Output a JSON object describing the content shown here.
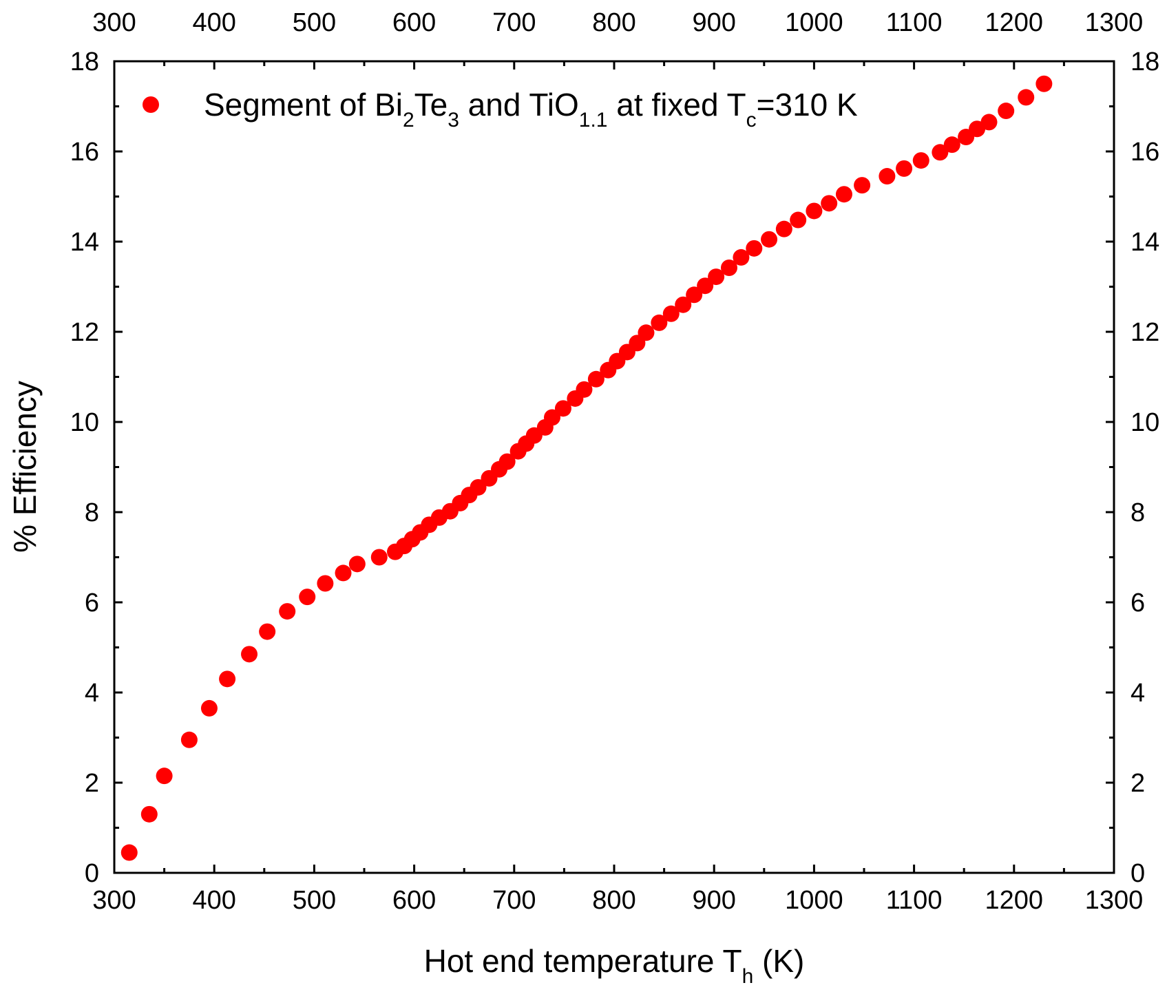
{
  "chart_data": {
    "type": "scatter",
    "xlabel": {
      "main": "Hot end temperature T",
      "sub": "h",
      "unit": " (K)"
    },
    "ylabel": "% Efficiency",
    "xlim": [
      300,
      1300
    ],
    "ylim": [
      0,
      18
    ],
    "xticks": [
      300,
      400,
      500,
      600,
      700,
      800,
      900,
      1000,
      1100,
      1200,
      1300
    ],
    "yticks": [
      0,
      2,
      4,
      6,
      8,
      10,
      12,
      14,
      16,
      18
    ],
    "mirror_axes": true,
    "grid": false,
    "legend_position": "top-left",
    "colors": {
      "marker": "#ff0000",
      "axis": "#000000",
      "background": "#ffffff"
    },
    "legend": {
      "parts": [
        {
          "text": "Segment of Bi"
        },
        {
          "text": "2",
          "sub": true
        },
        {
          "text": "Te"
        },
        {
          "text": "3",
          "sub": true
        },
        {
          "text": " and TiO"
        },
        {
          "text": "1.1",
          "sub": true
        },
        {
          "text": " at fixed T"
        },
        {
          "text": "c",
          "sub": true
        },
        {
          "text": "=310 K"
        }
      ]
    },
    "series": [
      {
        "name": "Segment of Bi2Te3 and TiO1.1 at fixed Tc=310 K",
        "x": [
          315,
          335,
          350,
          375,
          395,
          413,
          435,
          453,
          473,
          493,
          511,
          529,
          543,
          565,
          581,
          590,
          598,
          606,
          615,
          625,
          636,
          646,
          655,
          664,
          675,
          685,
          693,
          704,
          712,
          720,
          731,
          738,
          749,
          761,
          770,
          782,
          794,
          803,
          813,
          823,
          832,
          845,
          857,
          869,
          880,
          891,
          902,
          915,
          927,
          940,
          955,
          970,
          984,
          1000,
          1015,
          1030,
          1048,
          1073,
          1090,
          1107,
          1126,
          1138,
          1152,
          1163,
          1175,
          1192,
          1212,
          1230
        ],
        "y": [
          0.45,
          1.3,
          2.15,
          2.95,
          3.65,
          4.3,
          4.85,
          5.35,
          5.8,
          6.12,
          6.42,
          6.65,
          6.85,
          7.0,
          7.12,
          7.25,
          7.4,
          7.55,
          7.72,
          7.88,
          8.02,
          8.2,
          8.38,
          8.55,
          8.75,
          8.95,
          9.12,
          9.35,
          9.52,
          9.7,
          9.88,
          10.1,
          10.3,
          10.52,
          10.72,
          10.95,
          11.15,
          11.35,
          11.55,
          11.75,
          11.98,
          12.2,
          12.4,
          12.6,
          12.82,
          13.02,
          13.22,
          13.42,
          13.65,
          13.85,
          14.05,
          14.28,
          14.48,
          14.68,
          14.85,
          15.05,
          15.25,
          15.45,
          15.62,
          15.8,
          15.98,
          16.15,
          16.32,
          16.5,
          16.65,
          16.9,
          17.2,
          17.5
        ]
      }
    ]
  }
}
